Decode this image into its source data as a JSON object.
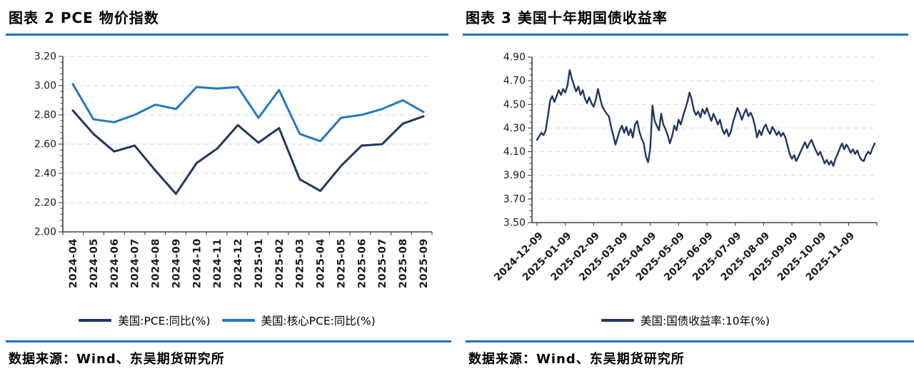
{
  "page": {
    "background": "#ffffff",
    "accent_rule_color": "#1f70c1",
    "axis_color": "#404040",
    "gridline_color": "#d9d9d9"
  },
  "panels": [
    {
      "title": "图表 2  PCE 物价指数",
      "source": "数据来源：Wind、东吴期货研究所"
    },
    {
      "title": "图表 3  美国十年期国债收益率",
      "source": "数据来源：Wind、东吴期货研究所"
    }
  ],
  "chart_data": [
    {
      "type": "line",
      "title": "图表 2  PCE 物价指数",
      "categories": [
        "2024-04",
        "2024-05",
        "2024-06",
        "2024-07",
        "2024-08",
        "2024-09",
        "2024-10",
        "2024-11",
        "2024-12",
        "2025-01",
        "2025-02",
        "2025-03",
        "2025-04",
        "2025-05",
        "2025-06",
        "2025-07",
        "2025-08",
        "2025-09"
      ],
      "series": [
        {
          "name": "美国:PCE:同比(%)",
          "color": "#1f3864",
          "values": [
            2.83,
            2.67,
            2.55,
            2.59,
            2.42,
            2.26,
            2.47,
            2.57,
            2.73,
            2.61,
            2.71,
            2.36,
            2.28,
            2.45,
            2.59,
            2.6,
            2.74,
            2.79
          ]
        },
        {
          "name": "美国:核心PCE:同比(%)",
          "color": "#2279c4",
          "values": [
            3.01,
            2.77,
            2.75,
            2.8,
            2.87,
            2.84,
            2.99,
            2.98,
            2.99,
            2.78,
            2.97,
            2.67,
            2.62,
            2.78,
            2.8,
            2.84,
            2.9,
            2.82
          ]
        }
      ],
      "ylim": [
        2.0,
        3.2
      ],
      "ytick_step": 0.2,
      "ytick_minor": 0.04,
      "y_decimals": 2,
      "grid": "horizontal-dashed",
      "legend_position": "bottom",
      "x_label_rotation": -90
    },
    {
      "type": "line",
      "title": "图表 3  美国十年期国债收益率",
      "series": [
        {
          "name": "美国:国债收益率:10年(%)",
          "color": "#1f3864",
          "values": [
            4.2,
            4.23,
            4.26,
            4.24,
            4.28,
            4.4,
            4.53,
            4.57,
            4.52,
            4.57,
            4.62,
            4.58,
            4.63,
            4.6,
            4.66,
            4.79,
            4.72,
            4.66,
            4.61,
            4.65,
            4.58,
            4.62,
            4.55,
            4.51,
            4.56,
            4.51,
            4.48,
            4.54,
            4.63,
            4.55,
            4.48,
            4.45,
            4.42,
            4.4,
            4.31,
            4.24,
            4.16,
            4.22,
            4.28,
            4.32,
            4.26,
            4.31,
            4.24,
            4.29,
            4.22,
            4.33,
            4.36,
            4.27,
            4.21,
            4.17,
            4.06,
            4.01,
            4.13,
            4.49,
            4.36,
            4.32,
            4.28,
            4.42,
            4.33,
            4.29,
            4.24,
            4.17,
            4.23,
            4.32,
            4.28,
            4.37,
            4.33,
            4.4,
            4.46,
            4.52,
            4.6,
            4.54,
            4.45,
            4.41,
            4.44,
            4.39,
            4.46,
            4.42,
            4.47,
            4.41,
            4.36,
            4.42,
            4.38,
            4.33,
            4.37,
            4.29,
            4.25,
            4.29,
            4.23,
            4.27,
            4.35,
            4.41,
            4.47,
            4.43,
            4.37,
            4.42,
            4.46,
            4.4,
            4.43,
            4.39,
            4.32,
            4.22,
            4.28,
            4.24,
            4.3,
            4.33,
            4.28,
            4.25,
            4.31,
            4.28,
            4.24,
            4.27,
            4.23,
            4.26,
            4.22,
            4.15,
            4.08,
            4.04,
            4.07,
            4.02,
            4.06,
            4.1,
            4.14,
            4.18,
            4.13,
            4.17,
            4.2,
            4.15,
            4.11,
            4.07,
            4.1,
            4.05,
            4.0,
            4.03,
            3.99,
            4.02,
            3.98,
            4.04,
            4.08,
            4.13,
            4.17,
            4.12,
            4.16,
            4.13,
            4.09,
            4.12,
            4.08,
            4.11,
            4.06,
            4.03,
            4.02,
            4.07,
            4.1,
            4.08,
            4.13,
            4.17
          ]
        }
      ],
      "xticks": [
        {
          "index": 0,
          "label": "2024-12-09"
        },
        {
          "index": 13,
          "label": "2025-01-09"
        },
        {
          "index": 26,
          "label": "2025-02-09"
        },
        {
          "index": 39,
          "label": "2025-03-09"
        },
        {
          "index": 52,
          "label": "2025-04-09"
        },
        {
          "index": 65,
          "label": "2025-05-09"
        },
        {
          "index": 78,
          "label": "2025-06-09"
        },
        {
          "index": 91,
          "label": "2025-07-09"
        },
        {
          "index": 104,
          "label": "2025-08-09"
        },
        {
          "index": 117,
          "label": "2025-09-09"
        },
        {
          "index": 130,
          "label": "2025-10-09"
        },
        {
          "index": 143,
          "label": "2025-11-09"
        }
      ],
      "ylim": [
        3.5,
        4.9
      ],
      "ytick_step": 0.2,
      "ytick_minor": 0.05,
      "y_decimals": 2,
      "grid": "horizontal-dashed",
      "legend_position": "bottom",
      "x_label_rotation": -45
    }
  ]
}
